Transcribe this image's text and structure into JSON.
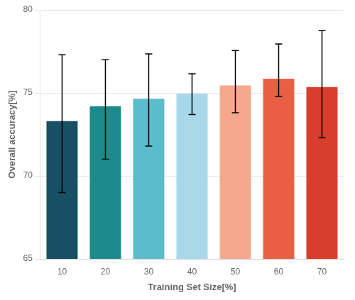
{
  "chart_data": {
    "type": "bar",
    "categories": [
      "10",
      "20",
      "30",
      "40",
      "50",
      "60",
      "70"
    ],
    "values": [
      73.3,
      74.2,
      74.65,
      74.95,
      75.45,
      75.85,
      75.35
    ],
    "errors_upper": [
      4.0,
      2.8,
      2.7,
      1.2,
      2.1,
      2.1,
      3.4
    ],
    "errors_lower": [
      4.3,
      3.2,
      2.85,
      1.25,
      1.65,
      1.05,
      3.05
    ],
    "colors": [
      "#174f63",
      "#1b8b8b",
      "#5bbccc",
      "#a8d8ea",
      "#f4a98f",
      "#e85f45",
      "#d83e2e"
    ],
    "xlabel": "Training Set Size[%]",
    "ylabel": "Overall accuracy[%]",
    "ylim": [
      65,
      80
    ],
    "yticks": [
      65,
      70,
      75,
      80
    ],
    "grid": true
  }
}
